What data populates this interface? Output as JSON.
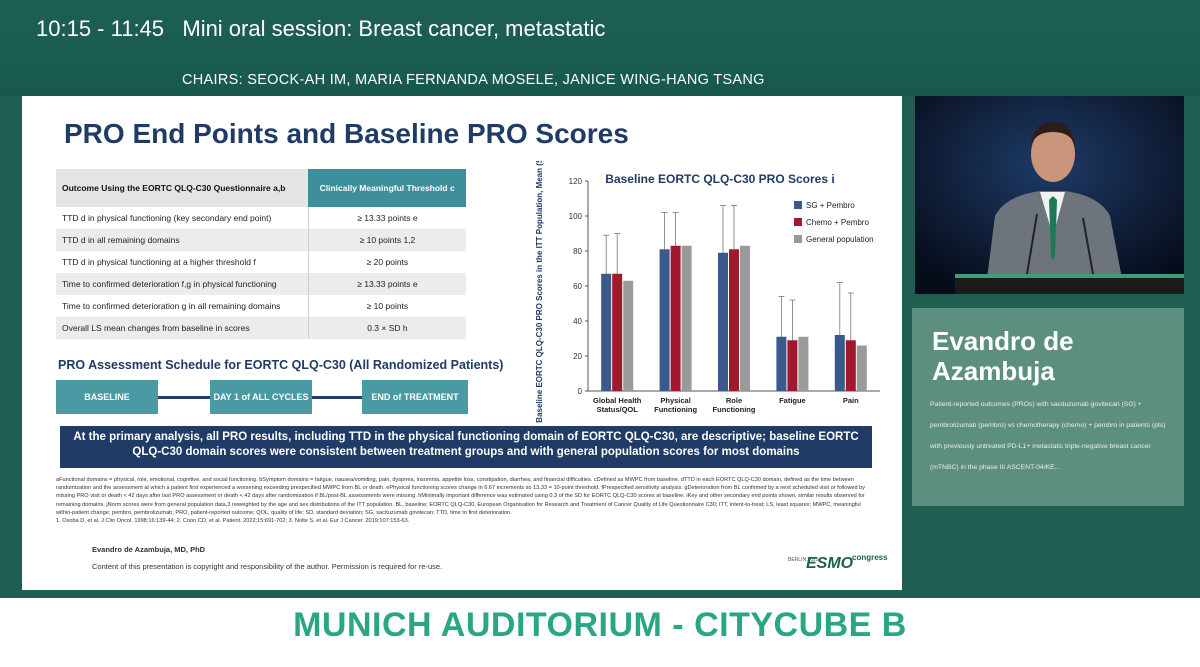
{
  "header": {
    "session": "10:15 - 11:45   Mini oral session: Breast cancer, metastatic",
    "chairs": "CHAIRS: SEOCK-AH IM, MARIA FERNANDA MOSELE, JANICE WING-HANG TSANG"
  },
  "slide": {
    "title": "PRO End Points and Baseline PRO Scores",
    "table": {
      "header_outcome": "Outcome Using the EORTC QLQ-C30 Questionnaire a,b",
      "header_threshold": "Clinically Meaningful Threshold c",
      "rows": [
        {
          "outcome": "TTD d in physical functioning (key secondary end point)",
          "threshold": "≥ 13.33 points e"
        },
        {
          "outcome": "TTD d in all remaining domains",
          "threshold": "≥ 10 points 1,2"
        },
        {
          "outcome": "TTD d in physical functioning at a higher threshold f",
          "threshold": "≥ 20 points"
        },
        {
          "outcome": "Time to confirmed deterioration f,g in physical functioning",
          "threshold": "≥ 13.33 points e"
        },
        {
          "outcome": "Time to confirmed deterioration g in all remaining domains",
          "threshold": "≥ 10 points"
        },
        {
          "outcome": "Overall LS mean changes from baseline in scores",
          "threshold": "0.3 × SD h"
        }
      ]
    },
    "schedule": {
      "title": "PRO Assessment Schedule for EORTC QLQ-C30 (All Randomized Patients)",
      "baseline": "BASELINE",
      "day1": "DAY 1 of ALL CYCLES",
      "end": "END of TREATMENT"
    },
    "banner": "At the primary analysis, all PRO results, including TTD in the physical functioning domain of EORTC QLQ-C30, are descriptive; baseline EORTC QLQ-C30 domain scores were consistent between treatment groups and with general population scores for most domains",
    "footnotes": "aFunctional domains = physical, role, emotional, cognitive, and social functioning. bSymptom domains = fatigue, nausea/vomiting, pain, dyspnea, insomnia, appetite loss, constipation, diarrhea, and financial difficulties. cDefined as MWPC from baseline. dTTD in each EORTC QLQ-C30 domain, defined as the time between randomization and the assessment at which a patient first experienced a worsening exceeding prespecified MWPC from BL or death. ePhysical functioning scores change in 6.67 increments so 13.33 = 10-point threshold. fPrespecified sensitivity analysis. gDeterioration from BL confirmed by a next scheduled visit or followed by missing PRO visit or death < 42 days after last PRO assessment or death < 42 days after randomization if BL/post-BL assessments were missing. hMinimally important difference was estimated using 0.3 of the SD for EORTC QLQ-C30 scores at baseline. iKey and other secondary end points shown, similar results observed for remaining domains. jNorm scores were from general population data,3 reweighted by the age and sex distributions of the ITT population. BL, baseline; EORTC QLQ-C30, European Organisation for Research and Treatment of Cancer Quality of Life Questionnaire C30; ITT, intent-to-treat; LS, least squares; MWPC, meaningful within-patient change; pembro, pembrolizumab; PRO, patient-reported outcome; QOL, quality of life; SD, standard deviation; SG, sacituzumab govitecan; TTD, time to first deterioration.",
    "references": "1. Osoba D, et al. J Clin Oncol. 1998;16:139-44; 2. Coon CD, et al. Patient. 2022;15:691-702; 3. Nolte S, et al. Eur J Cancer. 2019;107:153-63.",
    "author": "Evandro de Azambuja, MD, PhD",
    "copyright": "Content of this presentation is copyright and responsibility of the author. Permission is required for re-use.",
    "esmo_city": "BERLIN 2025",
    "esmo_logo": "ESMO",
    "esmo_congress": "congress"
  },
  "chart_data": {
    "type": "bar",
    "title": "Baseline EORTC QLQ-C30 PRO Scores i",
    "ylabel": "Baseline EORTC QLQ-C30 PRO Scores in the ITT Population, Mean (SD)",
    "xlabel": "",
    "ylim": [
      0,
      120
    ],
    "yticks": [
      0,
      20,
      40,
      60,
      80,
      100,
      120
    ],
    "categories": [
      "Global Health Status/QOL",
      "Physical Functioning",
      "Role Functioning",
      "Fatigue",
      "Pain"
    ],
    "series": [
      {
        "name": "SG + Pembro",
        "color": "#3a5a8c",
        "values": [
          67,
          81,
          79,
          31,
          32
        ],
        "sd_upper": [
          89,
          102,
          106,
          54,
          62
        ]
      },
      {
        "name": "Chemo + Pembro",
        "color": "#a0192c",
        "values": [
          67,
          83,
          81,
          29,
          29
        ],
        "sd_upper": [
          90,
          102,
          106,
          52,
          56
        ]
      },
      {
        "name": "General population",
        "color": "#9a9a9a",
        "values": [
          63,
          83,
          83,
          31,
          26
        ]
      }
    ],
    "legend": "top-right",
    "grid": false
  },
  "speaker": {
    "name": "Evandro de Azambuja",
    "talk": "Patient-reported outcomes (PROs) with sacituzumab govitecan (SG) + pembrolizumab (pembro) vs chemotherapy (chemo) + pembro in patients (pts) with previously untreated PD-L1+ metastatic triple-negative breast cancer (mTNBC) in the phase III ASCENT-04/KE..."
  },
  "footer": {
    "venue": "MUNICH AUDITORIUM - CITYCUBE B"
  }
}
